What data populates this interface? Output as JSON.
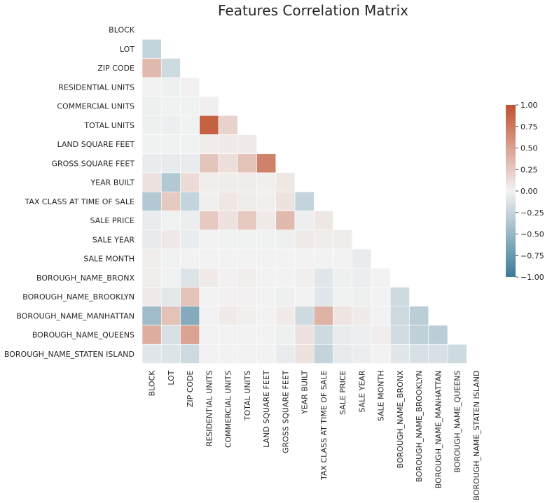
{
  "chart_data": {
    "type": "heatmap",
    "title": "Features Correlation Matrix",
    "mask": "upper-triangle",
    "labels": [
      "BLOCK",
      "LOT",
      "ZIP CODE",
      "RESIDENTIAL UNITS",
      "COMMERCIAL UNITS",
      "TOTAL UNITS",
      "LAND SQUARE FEET",
      "GROSS SQUARE FEET",
      "YEAR BUILT",
      "TAX CLASS AT TIME OF SALE",
      "SALE PRICE",
      "SALE YEAR",
      "SALE MONTH",
      "BOROUGH_NAME_BRONX",
      "BOROUGH_NAME_BROOKLYN",
      "BOROUGH_NAME_MANHATTAN",
      "BOROUGH_NAME_QUEENS",
      "BOROUGH_NAME_STATEN ISLAND"
    ],
    "values": [
      [],
      [
        -0.25
      ],
      [
        0.35,
        -0.2
      ],
      [
        0.0,
        -0.02,
        0.01
      ],
      [
        -0.02,
        -0.01,
        -0.01,
        0.02
      ],
      [
        -0.02,
        -0.03,
        -0.01,
        0.9,
        0.2
      ],
      [
        -0.01,
        -0.01,
        -0.01,
        0.04,
        0.05,
        0.05
      ],
      [
        -0.05,
        -0.06,
        -0.05,
        0.28,
        0.12,
        0.3,
        0.7
      ],
      [
        0.1,
        -0.35,
        0.15,
        0.03,
        0.04,
        0.04,
        0.02,
        0.07
      ],
      [
        -0.35,
        0.25,
        -0.25,
        0.02,
        0.07,
        0.04,
        0.02,
        0.1,
        -0.25
      ],
      [
        -0.05,
        -0.01,
        -0.04,
        0.25,
        0.1,
        0.25,
        0.05,
        0.35,
        -0.03,
        0.07
      ],
      [
        -0.06,
        0.06,
        -0.05,
        0.0,
        -0.01,
        -0.01,
        -0.01,
        -0.02,
        0.05,
        0.04,
        0.04
      ],
      [
        0.03,
        -0.01,
        0.0,
        0.0,
        0.0,
        0.0,
        0.0,
        0.0,
        0.0,
        0.0,
        0.0,
        -0.05
      ],
      [
        0.03,
        -0.01,
        -0.12,
        0.05,
        0.01,
        0.03,
        0.0,
        0.0,
        0.02,
        -0.1,
        -0.02,
        -0.04,
        0.0
      ],
      [
        0.05,
        -0.08,
        0.3,
        0.0,
        0.01,
        0.01,
        0.0,
        -0.02,
        0.0,
        -0.1,
        -0.01,
        -0.02,
        0.0,
        -0.2
      ],
      [
        -0.45,
        0.3,
        -0.6,
        0.0,
        0.05,
        0.02,
        0.0,
        0.05,
        -0.2,
        0.4,
        0.08,
        0.05,
        0.0,
        -0.2,
        -0.3
      ],
      [
        0.42,
        -0.15,
        0.5,
        0.0,
        0.0,
        0.0,
        0.0,
        -0.02,
        0.1,
        -0.2,
        -0.05,
        -0.03,
        0.03,
        -0.18,
        -0.28,
        -0.3
      ],
      [
        -0.1,
        -0.12,
        -0.2,
        0.0,
        0.0,
        0.0,
        0.0,
        -0.05,
        0.1,
        -0.25,
        -0.06,
        -0.04,
        0.0,
        -0.1,
        -0.15,
        -0.15,
        -0.2
      ]
    ],
    "colorbar": {
      "min": -1.0,
      "max": 1.0,
      "ticks": [
        "1.00",
        "0.75",
        "0.50",
        "0.25",
        "0.00",
        "−0.25",
        "−0.50",
        "−0.75",
        "−1.00"
      ],
      "tick_values": [
        1.0,
        0.75,
        0.5,
        0.25,
        0.0,
        -0.25,
        -0.5,
        -0.75,
        -1.0
      ]
    },
    "colors": {
      "negative": "#3b7a98",
      "center": "#f2f2f2",
      "positive": "#c0512f"
    }
  }
}
